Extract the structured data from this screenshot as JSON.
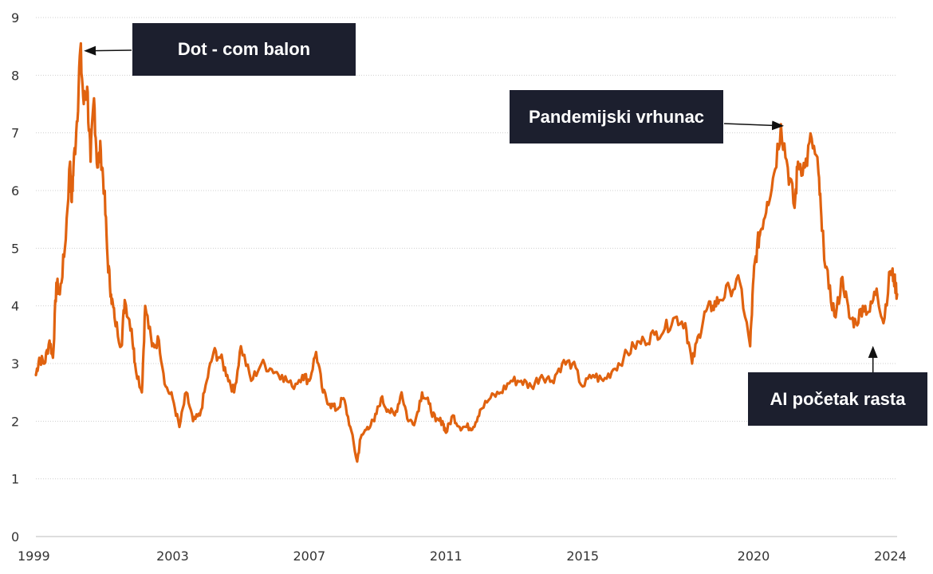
{
  "chart_data": {
    "type": "line",
    "title": "",
    "xlabel": "",
    "ylabel": "",
    "xlim": [
      1999,
      2024.2
    ],
    "ylim": [
      0,
      9
    ],
    "grid": true,
    "x_ticks": [
      "1999",
      "2003",
      "2007",
      "2011",
      "2015",
      "2020",
      "2024"
    ],
    "y_ticks": [
      "0",
      "1",
      "2",
      "3",
      "4",
      "5",
      "6",
      "7",
      "8",
      "9"
    ],
    "colors": {
      "line": "#e0620f",
      "annotation_bg": "#1c1f2e",
      "annotation_text": "#ffffff",
      "grid": "#cfcfcf"
    },
    "series": [
      {
        "x": [
          1999.0,
          1999.1,
          1999.25,
          1999.4,
          1999.5,
          1999.6,
          1999.7,
          1999.85,
          2000.0,
          2000.05,
          2000.1,
          2000.2,
          2000.3,
          2000.4,
          2000.5,
          2000.6,
          2000.7,
          2000.8,
          2000.9,
          2001.0,
          2001.1,
          2001.2,
          2001.3,
          2001.5,
          2001.6,
          2001.8,
          2001.9,
          2002.1,
          2002.2,
          2002.4,
          2002.6,
          2002.8,
          2003.0,
          2003.2,
          2003.4,
          2003.6,
          2003.8,
          2004.0,
          2004.2,
          2004.4,
          2004.6,
          2004.8,
          2005.0,
          2005.3,
          2005.6,
          2005.9,
          2006.2,
          2006.5,
          2006.8,
          2007.0,
          2007.2,
          2007.4,
          2007.6,
          2007.8,
          2008.0,
          2008.2,
          2008.4,
          2008.5,
          2008.7,
          2008.9,
          2009.1,
          2009.3,
          2009.5,
          2009.7,
          2009.9,
          2010.1,
          2010.3,
          2010.5,
          2010.7,
          2010.9,
          2011.0,
          2011.2,
          2011.4,
          2011.6,
          2011.8,
          2012.0,
          2012.3,
          2012.6,
          2012.9,
          2013.2,
          2013.5,
          2013.8,
          2014.1,
          2014.4,
          2014.7,
          2015.0,
          2015.3,
          2015.6,
          2015.9,
          2016.2,
          2016.5,
          2016.8,
          2017.1,
          2017.4,
          2017.7,
          2018.0,
          2018.2,
          2018.4,
          2018.6,
          2018.8,
          2019.0,
          2019.3,
          2019.6,
          2019.9,
          2020.0,
          2020.1,
          2020.2,
          2020.4,
          2020.6,
          2020.8,
          2021.0,
          2021.2,
          2021.3,
          2021.5,
          2021.7,
          2021.9,
          2022.0,
          2022.2,
          2022.4,
          2022.6,
          2022.8,
          2023.0,
          2023.2,
          2023.4,
          2023.6,
          2023.8,
          2024.0,
          2024.1,
          2024.2
        ],
        "values": [
          2.8,
          3.1,
          3.0,
          3.4,
          3.1,
          4.4,
          4.2,
          5.0,
          6.5,
          5.8,
          6.4,
          7.2,
          8.45,
          7.5,
          7.8,
          6.5,
          7.6,
          6.4,
          6.7,
          6.0,
          4.8,
          4.2,
          3.8,
          3.3,
          4.1,
          3.6,
          3.0,
          2.5,
          4.0,
          3.3,
          3.4,
          2.6,
          2.4,
          1.9,
          2.5,
          2.0,
          2.1,
          2.7,
          3.2,
          3.1,
          2.8,
          2.5,
          3.3,
          2.7,
          3.0,
          2.9,
          2.8,
          2.6,
          2.8,
          2.7,
          3.2,
          2.5,
          2.3,
          2.2,
          2.4,
          1.9,
          1.3,
          1.7,
          1.9,
          2.0,
          2.4,
          2.2,
          2.1,
          2.5,
          2.0,
          2.0,
          2.5,
          2.3,
          2.0,
          2.0,
          1.8,
          2.1,
          1.9,
          1.9,
          1.9,
          2.2,
          2.4,
          2.5,
          2.7,
          2.7,
          2.6,
          2.8,
          2.7,
          3.0,
          3.0,
          2.6,
          2.8,
          2.7,
          2.9,
          3.1,
          3.3,
          3.4,
          3.5,
          3.6,
          3.8,
          3.7,
          3.0,
          3.5,
          3.9,
          4.0,
          4.1,
          4.3,
          4.4,
          3.3,
          4.5,
          5.0,
          5.3,
          5.8,
          6.3,
          7.15,
          6.4,
          5.7,
          6.5,
          6.4,
          6.9,
          6.3,
          5.3,
          4.3,
          3.8,
          4.5,
          3.8,
          3.7,
          4.0,
          3.9,
          4.3,
          3.7,
          4.6,
          4.5,
          4.2
        ],
        "color": "#e0620f"
      }
    ],
    "annotations": [
      {
        "label": "Dot - com balon",
        "x": 2000.3,
        "y": 8.45
      },
      {
        "label": "Pandemijski vrhunac",
        "x": 2020.9,
        "y": 7.15
      },
      {
        "label": "AI početak rasta",
        "x": 2023.4,
        "y": 3.7
      }
    ]
  }
}
